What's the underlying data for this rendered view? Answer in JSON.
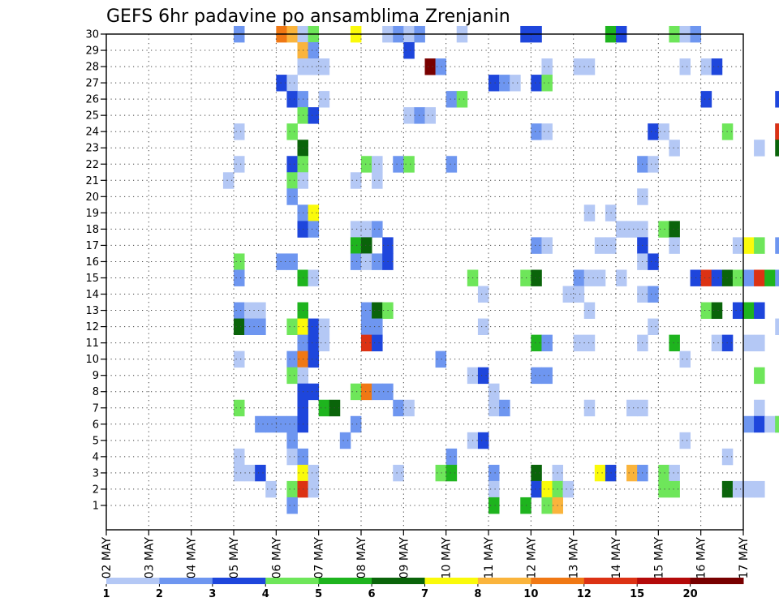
{
  "chart_data": {
    "type": "heatmap",
    "title": "GEFS 6hr padavine po ansamblima Zrenjanin",
    "xlabel": "",
    "ylabel": "",
    "x_tick_labels": [
      "02 MAY",
      "03 MAY",
      "04 MAY",
      "05 MAY",
      "06 MAY",
      "07 MAY",
      "08 MAY",
      "09 MAY",
      "10 MAY",
      "11 MAY",
      "12 MAY",
      "13 MAY",
      "14 MAY",
      "15 MAY",
      "16 MAY",
      "17 MAY"
    ],
    "y_tick_labels": [
      "1",
      "2",
      "3",
      "4",
      "5",
      "6",
      "7",
      "8",
      "9",
      "10",
      "11",
      "12",
      "13",
      "14",
      "15",
      "16",
      "17",
      "18",
      "19",
      "20",
      "21",
      "22",
      "23",
      "24",
      "25",
      "26",
      "27",
      "28",
      "29",
      "30"
    ],
    "x_range": [
      "02 MAY 00Z",
      "17 MAY 00Z"
    ],
    "time_step_hours": 6,
    "y_range": [
      0,
      30
    ],
    "grid": "dotted",
    "scale_labels": [
      "1",
      "2",
      "3",
      "4",
      "5",
      "6",
      "7",
      "8",
      "10",
      "12",
      "15",
      "20"
    ],
    "scale_colors": [
      "#b4c8f5",
      "#6e96f0",
      "#1e46dc",
      "#6ee65a",
      "#1eb41e",
      "#0a640a",
      "#fafa0a",
      "#fab43c",
      "#f07814",
      "#dc3214",
      "#b40a0a",
      "#780000"
    ],
    "levels": [
      1,
      2,
      3,
      4,
      5,
      6,
      7,
      8,
      10,
      12,
      15,
      20
    ],
    "cells_note": "each cell: [day index from 02 MAY, 6h step 0-3, member 0-30, precipitation mm]",
    "cells": [
      [
        3,
        0,
        30,
        2
      ],
      [
        4,
        0,
        30,
        10
      ],
      [
        4,
        1,
        30,
        9
      ],
      [
        4,
        2,
        30,
        1
      ],
      [
        4,
        3,
        30,
        4
      ],
      [
        5,
        3,
        30,
        7
      ],
      [
        6,
        2,
        30,
        1
      ],
      [
        6,
        3,
        30,
        2
      ],
      [
        7,
        0,
        30,
        1
      ],
      [
        7,
        1,
        30,
        2
      ],
      [
        8,
        1,
        30,
        1
      ],
      [
        9,
        3,
        30,
        3
      ],
      [
        10,
        0,
        30,
        3
      ],
      [
        11,
        3,
        30,
        5
      ],
      [
        12,
        0,
        30,
        3
      ],
      [
        13,
        1,
        30,
        4
      ],
      [
        13,
        2,
        30,
        1
      ],
      [
        13,
        3,
        30,
        2
      ],
      [
        4,
        2,
        29,
        9
      ],
      [
        4,
        3,
        29,
        2
      ],
      [
        7,
        0,
        29,
        3
      ],
      [
        4,
        2,
        28,
        1
      ],
      [
        4,
        3,
        28,
        1
      ],
      [
        5,
        0,
        28,
        1
      ],
      [
        7,
        2,
        28,
        20
      ],
      [
        7,
        3,
        28,
        2
      ],
      [
        10,
        1,
        28,
        1
      ],
      [
        11,
        0,
        28,
        1
      ],
      [
        11,
        1,
        28,
        1
      ],
      [
        13,
        2,
        28,
        1
      ],
      [
        14,
        0,
        28,
        1
      ],
      [
        14,
        1,
        28,
        3
      ],
      [
        4,
        0,
        27,
        3
      ],
      [
        4,
        1,
        27,
        1
      ],
      [
        9,
        0,
        27,
        3
      ],
      [
        9,
        1,
        27,
        2
      ],
      [
        9,
        2,
        27,
        1
      ],
      [
        10,
        0,
        27,
        3
      ],
      [
        10,
        1,
        27,
        4
      ],
      [
        4,
        1,
        26,
        3
      ],
      [
        4,
        2,
        26,
        2
      ],
      [
        5,
        0,
        26,
        1
      ],
      [
        8,
        0,
        26,
        2
      ],
      [
        8,
        1,
        26,
        4
      ],
      [
        14,
        0,
        26,
        3
      ],
      [
        15,
        3,
        26,
        3
      ],
      [
        4,
        2,
        25,
        4
      ],
      [
        4,
        3,
        25,
        3
      ],
      [
        7,
        0,
        25,
        1
      ],
      [
        7,
        1,
        25,
        2
      ],
      [
        7,
        2,
        25,
        1
      ],
      [
        3,
        0,
        24,
        1
      ],
      [
        4,
        1,
        24,
        4
      ],
      [
        10,
        0,
        24,
        2
      ],
      [
        10,
        1,
        24,
        1
      ],
      [
        12,
        3,
        24,
        3
      ],
      [
        13,
        0,
        24,
        1
      ],
      [
        14,
        2,
        24,
        4
      ],
      [
        15,
        3,
        24,
        2
      ],
      [
        15,
        3,
        24,
        12
      ],
      [
        4,
        2,
        23,
        6
      ],
      [
        13,
        1,
        23,
        1
      ],
      [
        15,
        1,
        23,
        1
      ],
      [
        15,
        3,
        23,
        6
      ],
      [
        3,
        0,
        22,
        1
      ],
      [
        4,
        1,
        22,
        3
      ],
      [
        4,
        2,
        22,
        4
      ],
      [
        6,
        0,
        22,
        4
      ],
      [
        6,
        1,
        22,
        1
      ],
      [
        6,
        3,
        22,
        2
      ],
      [
        7,
        0,
        22,
        4
      ],
      [
        8,
        0,
        22,
        2
      ],
      [
        12,
        2,
        22,
        2
      ],
      [
        12,
        3,
        22,
        1
      ],
      [
        2,
        3,
        21,
        1
      ],
      [
        4,
        1,
        21,
        4
      ],
      [
        4,
        2,
        21,
        1
      ],
      [
        5,
        3,
        21,
        1
      ],
      [
        6,
        1,
        21,
        1
      ],
      [
        4,
        1,
        20,
        2
      ],
      [
        12,
        2,
        20,
        1
      ],
      [
        4,
        2,
        19,
        2
      ],
      [
        4,
        3,
        19,
        7
      ],
      [
        11,
        1,
        19,
        1
      ],
      [
        11,
        3,
        19,
        1
      ],
      [
        4,
        2,
        18,
        3
      ],
      [
        4,
        3,
        18,
        2
      ],
      [
        5,
        3,
        18,
        1
      ],
      [
        6,
        0,
        18,
        1
      ],
      [
        6,
        1,
        18,
        2
      ],
      [
        12,
        0,
        18,
        1
      ],
      [
        12,
        1,
        18,
        1
      ],
      [
        12,
        2,
        18,
        1
      ],
      [
        13,
        0,
        18,
        4
      ],
      [
        13,
        1,
        18,
        6
      ],
      [
        5,
        3,
        17,
        5
      ],
      [
        6,
        0,
        17,
        6
      ],
      [
        6,
        2,
        17,
        3
      ],
      [
        10,
        0,
        17,
        2
      ],
      [
        10,
        1,
        17,
        1
      ],
      [
        11,
        2,
        17,
        1
      ],
      [
        11,
        3,
        17,
        1
      ],
      [
        12,
        2,
        17,
        3
      ],
      [
        13,
        1,
        17,
        1
      ],
      [
        14,
        3,
        17,
        1
      ],
      [
        15,
        0,
        17,
        7
      ],
      [
        15,
        1,
        17,
        4
      ],
      [
        15,
        3,
        17,
        2
      ],
      [
        3,
        0,
        16,
        4
      ],
      [
        4,
        0,
        16,
        2
      ],
      [
        4,
        1,
        16,
        2
      ],
      [
        5,
        3,
        16,
        2
      ],
      [
        6,
        0,
        16,
        1
      ],
      [
        6,
        1,
        16,
        2
      ],
      [
        6,
        2,
        16,
        3
      ],
      [
        12,
        2,
        16,
        1
      ],
      [
        12,
        3,
        16,
        3
      ],
      [
        3,
        0,
        15,
        2
      ],
      [
        4,
        2,
        15,
        5
      ],
      [
        4,
        3,
        15,
        1
      ],
      [
        8,
        2,
        15,
        4
      ],
      [
        9,
        3,
        15,
        4
      ],
      [
        10,
        0,
        15,
        6
      ],
      [
        11,
        0,
        15,
        2
      ],
      [
        11,
        1,
        15,
        1
      ],
      [
        11,
        2,
        15,
        1
      ],
      [
        12,
        0,
        15,
        1
      ],
      [
        13,
        3,
        15,
        3
      ],
      [
        14,
        0,
        15,
        12
      ],
      [
        14,
        1,
        15,
        3
      ],
      [
        14,
        2,
        15,
        6
      ],
      [
        14,
        3,
        15,
        4
      ],
      [
        15,
        0,
        15,
        2
      ],
      [
        15,
        1,
        15,
        12
      ],
      [
        15,
        2,
        15,
        5
      ],
      [
        15,
        3,
        15,
        2
      ],
      [
        8,
        3,
        14,
        1
      ],
      [
        10,
        3,
        14,
        1
      ],
      [
        11,
        0,
        14,
        1
      ],
      [
        12,
        2,
        14,
        1
      ],
      [
        12,
        3,
        14,
        2
      ],
      [
        3,
        0,
        13,
        2
      ],
      [
        3,
        1,
        13,
        1
      ],
      [
        3,
        2,
        13,
        1
      ],
      [
        4,
        2,
        13,
        5
      ],
      [
        6,
        0,
        13,
        2
      ],
      [
        6,
        1,
        13,
        6
      ],
      [
        6,
        2,
        13,
        4
      ],
      [
        11,
        1,
        13,
        1
      ],
      [
        14,
        0,
        13,
        4
      ],
      [
        14,
        1,
        13,
        6
      ],
      [
        14,
        3,
        13,
        3
      ],
      [
        15,
        0,
        13,
        5
      ],
      [
        15,
        1,
        13,
        3
      ],
      [
        3,
        0,
        12,
        6
      ],
      [
        3,
        1,
        12,
        2
      ],
      [
        3,
        2,
        12,
        2
      ],
      [
        4,
        1,
        12,
        4
      ],
      [
        4,
        2,
        12,
        7
      ],
      [
        4,
        3,
        12,
        3
      ],
      [
        5,
        0,
        12,
        1
      ],
      [
        6,
        0,
        12,
        2
      ],
      [
        6,
        1,
        12,
        2
      ],
      [
        8,
        3,
        12,
        1
      ],
      [
        12,
        3,
        12,
        1
      ],
      [
        15,
        3,
        12,
        1
      ],
      [
        4,
        2,
        11,
        2
      ],
      [
        4,
        3,
        11,
        3
      ],
      [
        5,
        0,
        11,
        1
      ],
      [
        6,
        0,
        11,
        12
      ],
      [
        6,
        1,
        11,
        3
      ],
      [
        10,
        0,
        11,
        5
      ],
      [
        10,
        1,
        11,
        2
      ],
      [
        11,
        0,
        11,
        1
      ],
      [
        11,
        1,
        11,
        1
      ],
      [
        12,
        2,
        11,
        1
      ],
      [
        13,
        1,
        11,
        5
      ],
      [
        14,
        1,
        11,
        1
      ],
      [
        14,
        2,
        11,
        3
      ],
      [
        15,
        0,
        11,
        1
      ],
      [
        15,
        1,
        11,
        1
      ],
      [
        3,
        0,
        10,
        1
      ],
      [
        4,
        1,
        10,
        2
      ],
      [
        4,
        2,
        10,
        10
      ],
      [
        4,
        3,
        10,
        3
      ],
      [
        7,
        3,
        10,
        2
      ],
      [
        13,
        2,
        10,
        1
      ],
      [
        4,
        1,
        9,
        4
      ],
      [
        4,
        2,
        9,
        1
      ],
      [
        8,
        2,
        9,
        1
      ],
      [
        8,
        3,
        9,
        3
      ],
      [
        10,
        0,
        9,
        2
      ],
      [
        10,
        1,
        9,
        2
      ],
      [
        15,
        1,
        9,
        4
      ],
      [
        4,
        2,
        8,
        3
      ],
      [
        4,
        3,
        8,
        3
      ],
      [
        5,
        3,
        8,
        4
      ],
      [
        6,
        0,
        8,
        10
      ],
      [
        6,
        1,
        8,
        2
      ],
      [
        6,
        2,
        8,
        2
      ],
      [
        9,
        0,
        8,
        1
      ],
      [
        3,
        0,
        7,
        4
      ],
      [
        4,
        2,
        7,
        3
      ],
      [
        5,
        0,
        7,
        5
      ],
      [
        5,
        1,
        7,
        6
      ],
      [
        6,
        3,
        7,
        2
      ],
      [
        7,
        0,
        7,
        1
      ],
      [
        9,
        0,
        7,
        1
      ],
      [
        9,
        1,
        7,
        2
      ],
      [
        11,
        1,
        7,
        1
      ],
      [
        12,
        1,
        7,
        1
      ],
      [
        12,
        2,
        7,
        1
      ],
      [
        15,
        1,
        7,
        1
      ],
      [
        3,
        2,
        6,
        2
      ],
      [
        3,
        3,
        6,
        2
      ],
      [
        4,
        0,
        6,
        2
      ],
      [
        4,
        1,
        6,
        2
      ],
      [
        4,
        2,
        6,
        3
      ],
      [
        5,
        3,
        6,
        2
      ],
      [
        15,
        0,
        6,
        2
      ],
      [
        15,
        1,
        6,
        3
      ],
      [
        15,
        2,
        6,
        1
      ],
      [
        15,
        3,
        6,
        2
      ],
      [
        15,
        3,
        6,
        4
      ],
      [
        4,
        1,
        5,
        2
      ],
      [
        5,
        2,
        5,
        2
      ],
      [
        8,
        2,
        5,
        1
      ],
      [
        8,
        3,
        5,
        3
      ],
      [
        13,
        2,
        5,
        1
      ],
      [
        3,
        0,
        4,
        1
      ],
      [
        4,
        1,
        4,
        1
      ],
      [
        4,
        2,
        4,
        2
      ],
      [
        8,
        0,
        4,
        2
      ],
      [
        14,
        2,
        4,
        1
      ],
      [
        3,
        0,
        3,
        1
      ],
      [
        3,
        1,
        3,
        1
      ],
      [
        3,
        2,
        3,
        3
      ],
      [
        4,
        2,
        3,
        7
      ],
      [
        4,
        3,
        3,
        1
      ],
      [
        6,
        3,
        3,
        1
      ],
      [
        7,
        3,
        3,
        4
      ],
      [
        8,
        0,
        3,
        5
      ],
      [
        9,
        0,
        3,
        2
      ],
      [
        10,
        0,
        3,
        6
      ],
      [
        10,
        2,
        3,
        1
      ],
      [
        11,
        2,
        3,
        7
      ],
      [
        11,
        3,
        3,
        3
      ],
      [
        12,
        1,
        3,
        9
      ],
      [
        12,
        2,
        3,
        2
      ],
      [
        13,
        0,
        3,
        4
      ],
      [
        13,
        1,
        3,
        1
      ],
      [
        3,
        3,
        2,
        1
      ],
      [
        4,
        1,
        2,
        4
      ],
      [
        4,
        2,
        2,
        12
      ],
      [
        4,
        3,
        2,
        1
      ],
      [
        9,
        0,
        2,
        1
      ],
      [
        10,
        0,
        2,
        3
      ],
      [
        10,
        1,
        2,
        7
      ],
      [
        10,
        2,
        2,
        4
      ],
      [
        10,
        3,
        2,
        1
      ],
      [
        13,
        0,
        2,
        4
      ],
      [
        13,
        1,
        2,
        4
      ],
      [
        14,
        2,
        2,
        6
      ],
      [
        14,
        3,
        2,
        1
      ],
      [
        15,
        0,
        2,
        1
      ],
      [
        15,
        1,
        2,
        1
      ],
      [
        4,
        1,
        1,
        2
      ],
      [
        9,
        0,
        1,
        5
      ],
      [
        9,
        3,
        1,
        5
      ],
      [
        10,
        1,
        1,
        4
      ],
      [
        10,
        2,
        1,
        9
      ]
    ]
  }
}
